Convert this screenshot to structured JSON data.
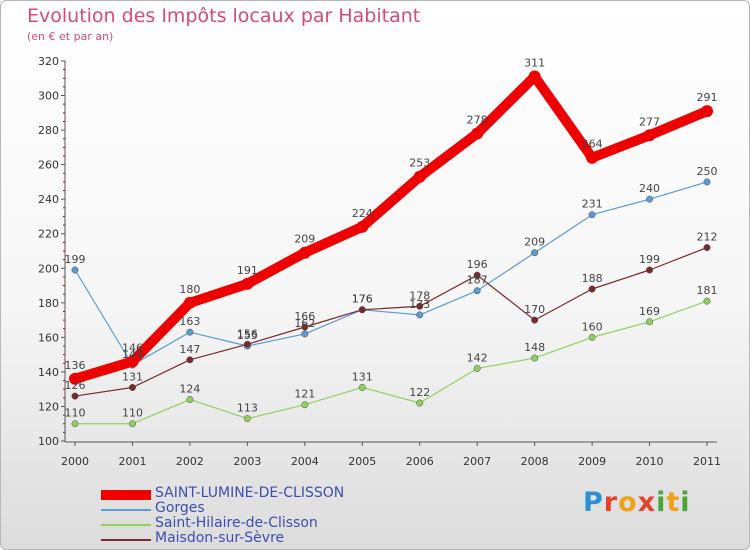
{
  "title": "Evolution des Impôts locaux par Habitant",
  "subtitle": "(en € et par an)",
  "logo": {
    "text": "Proxiti"
  },
  "chart_data": {
    "type": "line",
    "title": "Evolution des Impôts locaux par Habitant",
    "subtitle": "(en € et par an)",
    "x": [
      2000,
      2001,
      2002,
      2003,
      2004,
      2005,
      2006,
      2007,
      2008,
      2009,
      2010,
      2011
    ],
    "ylim": [
      100,
      320
    ],
    "yticks": [
      100,
      120,
      140,
      160,
      180,
      200,
      220,
      240,
      260,
      280,
      300,
      320
    ],
    "grid": false,
    "legend": "bottom-left",
    "series": [
      {
        "name": "SAINT-LUMINE-DE-CLISSON",
        "color": "#ee0000",
        "values": [
          136,
          146,
          180,
          191,
          209,
          224,
          253,
          278,
          311,
          264,
          277,
          291
        ]
      },
      {
        "name": "Gorges",
        "color": "#5b9bd5",
        "values": [
          199,
          144,
          163,
          155,
          162,
          176,
          173,
          187,
          209,
          231,
          240,
          250
        ]
      },
      {
        "name": "Saint-Hilaire-de-Clisson",
        "color": "#90d060",
        "values": [
          110,
          110,
          124,
          113,
          121,
          131,
          122,
          142,
          148,
          160,
          169,
          181
        ]
      },
      {
        "name": "Maisdon-sur-Sèvre",
        "color": "#7a2a2a",
        "values": [
          126,
          131,
          147,
          156,
          166,
          176,
          178,
          196,
          170,
          188,
          199,
          212
        ]
      }
    ]
  }
}
